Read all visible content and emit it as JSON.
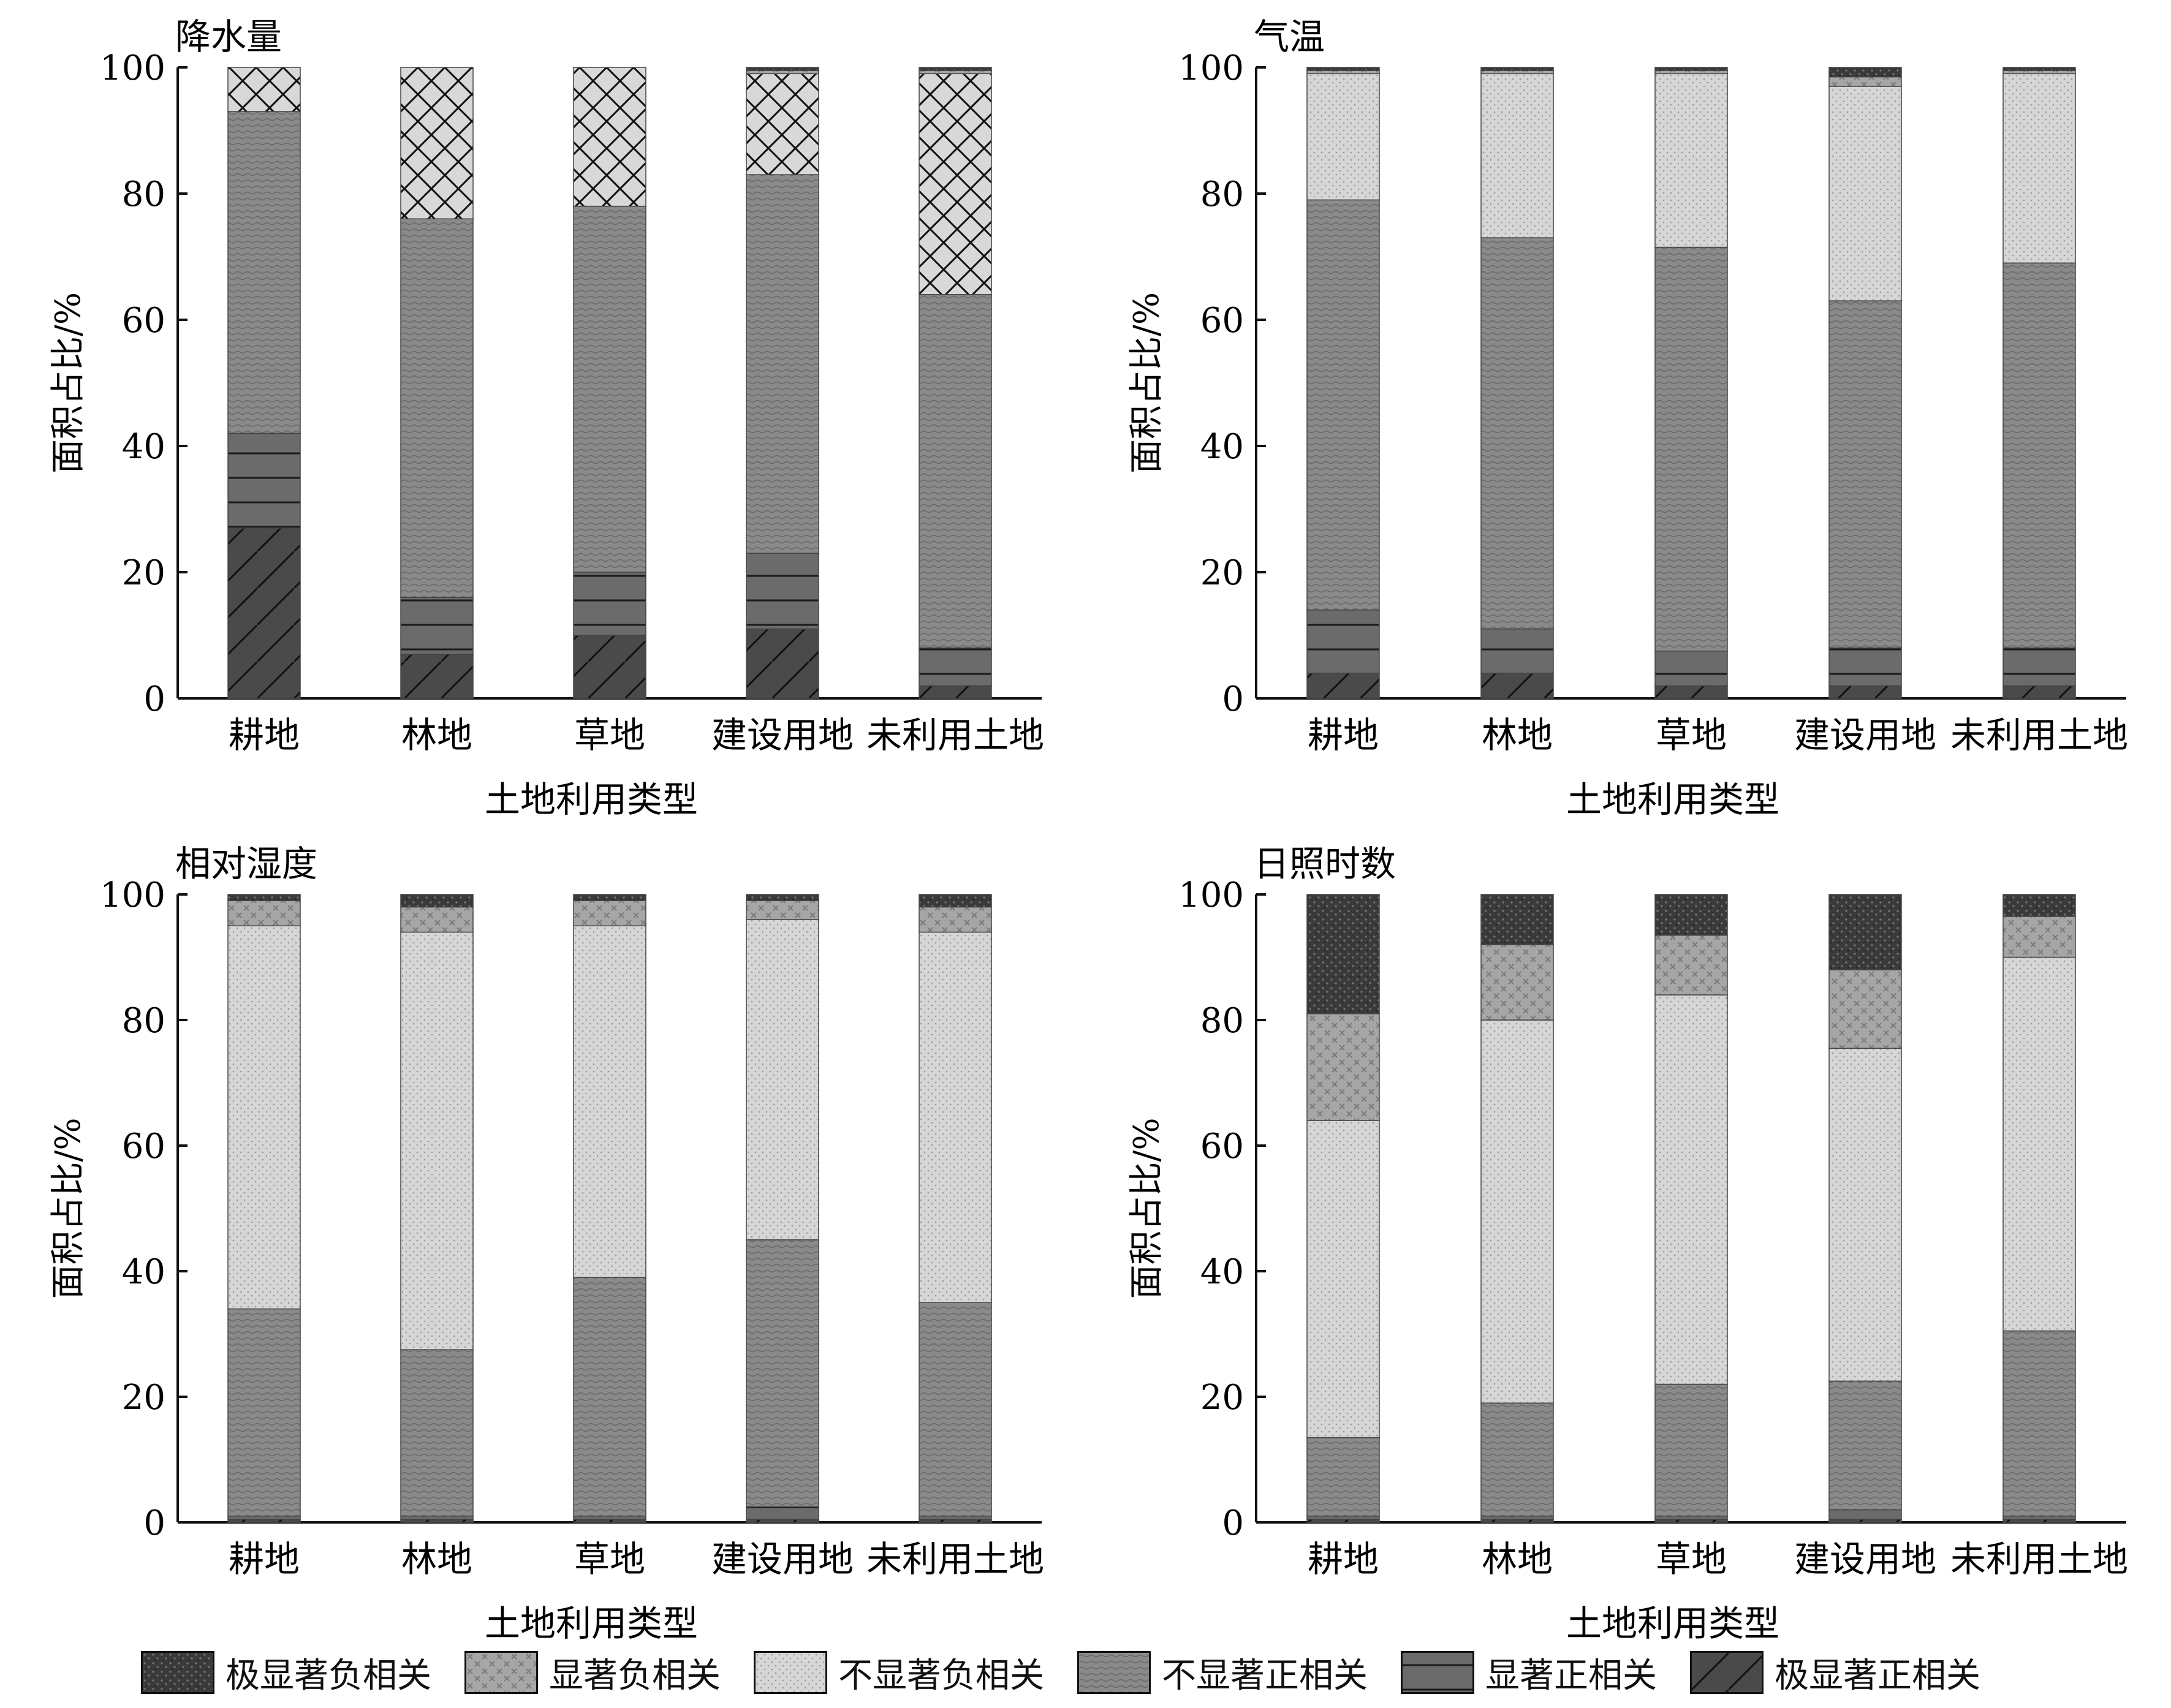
{
  "chart_data": [
    {
      "type": "bar",
      "stacked": true,
      "title": "降水量",
      "xlabel": "土地利用类型",
      "ylabel": "面积占比/%",
      "ylim": [
        0,
        100
      ],
      "yticks": [
        "0",
        "20",
        "40",
        "60",
        "80",
        "100"
      ],
      "categories": [
        "耕地",
        "林地",
        "草地",
        "建设用地",
        "未利用土地"
      ],
      "series": [
        {
          "name": "极显著正相关",
          "values": [
            27,
            7,
            10,
            11,
            2
          ]
        },
        {
          "name": "显著正相关",
          "values": [
            15,
            9,
            10,
            12,
            6
          ]
        },
        {
          "name": "不显著正相关",
          "values": [
            51,
            60,
            58,
            60,
            56
          ]
        },
        {
          "name": "不显著负相关",
          "values": [
            7,
            24,
            22,
            16,
            35
          ]
        },
        {
          "name": "显著负相关",
          "values": [
            0,
            0,
            0,
            0.5,
            0.5
          ]
        },
        {
          "name": "极显著负相关",
          "values": [
            0,
            0,
            0,
            0.5,
            0.5
          ]
        }
      ]
    },
    {
      "type": "bar",
      "stacked": true,
      "title": "气温",
      "xlabel": "土地利用类型",
      "ylabel": "面积占比/%",
      "ylim": [
        0,
        100
      ],
      "yticks": [
        "0",
        "20",
        "40",
        "60",
        "80",
        "100"
      ],
      "categories": [
        "耕地",
        "林地",
        "草地",
        "建设用地",
        "未利用土地"
      ],
      "series": [
        {
          "name": "极显著正相关",
          "values": [
            4,
            4,
            2,
            2,
            2
          ]
        },
        {
          "name": "显著正相关",
          "values": [
            10,
            7,
            5.5,
            6,
            6
          ]
        },
        {
          "name": "不显著正相关",
          "values": [
            65,
            62,
            64,
            55,
            61
          ]
        },
        {
          "name": "不显著负相关",
          "values": [
            20,
            26,
            27.5,
            34,
            30
          ]
        },
        {
          "name": "显著负相关",
          "values": [
            0.5,
            0.5,
            0.5,
            1.5,
            0.5
          ]
        },
        {
          "name": "极显著负相关",
          "values": [
            0.5,
            0.5,
            0.5,
            1.5,
            0.5
          ]
        }
      ]
    },
    {
      "type": "bar",
      "stacked": true,
      "title": "相对湿度",
      "xlabel": "土地利用类型",
      "ylabel": "面积占比/%",
      "ylim": [
        0,
        100
      ],
      "yticks": [
        "0",
        "20",
        "40",
        "60",
        "80",
        "100"
      ],
      "categories": [
        "耕地",
        "林地",
        "草地",
        "建设用地",
        "未利用土地"
      ],
      "series": [
        {
          "name": "极显著正相关",
          "values": [
            0.5,
            0.5,
            0.5,
            0.5,
            0.5
          ]
        },
        {
          "name": "显著正相关",
          "values": [
            0.5,
            0.5,
            0.5,
            2,
            0.5
          ]
        },
        {
          "name": "不显著正相关",
          "values": [
            33,
            26.5,
            38,
            42.5,
            34
          ]
        },
        {
          "name": "不显著负相关",
          "values": [
            61,
            66.5,
            56,
            51,
            59
          ]
        },
        {
          "name": "显著负相关",
          "values": [
            4,
            4,
            4,
            3,
            4
          ]
        },
        {
          "name": "极显著负相关",
          "values": [
            1,
            2,
            1,
            1,
            2
          ]
        }
      ]
    },
    {
      "type": "bar",
      "stacked": true,
      "title": "日照时数",
      "xlabel": "土地利用类型",
      "ylabel": "面积占比/%",
      "ylim": [
        0,
        100
      ],
      "yticks": [
        "0",
        "20",
        "40",
        "60",
        "80",
        "100"
      ],
      "categories": [
        "耕地",
        "林地",
        "草地",
        "建设用地",
        "未利用土地"
      ],
      "series": [
        {
          "name": "极显著正相关",
          "values": [
            0.5,
            0.5,
            0.5,
            0.5,
            0.5
          ]
        },
        {
          "name": "显著正相关",
          "values": [
            0.5,
            0.5,
            0.5,
            1.5,
            0.5
          ]
        },
        {
          "name": "不显著正相关",
          "values": [
            12.5,
            18,
            21,
            20.5,
            29.5
          ]
        },
        {
          "name": "不显著负相关",
          "values": [
            50.5,
            61,
            62,
            53,
            59.5
          ]
        },
        {
          "name": "显著负相关",
          "values": [
            17,
            12,
            9.5,
            12.5,
            6.5
          ]
        },
        {
          "name": "极显著负相关",
          "values": [
            19,
            8,
            6.5,
            12,
            3.5
          ]
        }
      ]
    }
  ],
  "legend": [
    {
      "name": "极显著负相关",
      "key": "p_vneg"
    },
    {
      "name": "显著负相关",
      "key": "p_neg"
    },
    {
      "name": "不显著负相关",
      "key": "p_nsneg"
    },
    {
      "name": "不显著正相关",
      "key": "p_nspos"
    },
    {
      "name": "显著正相关",
      "key": "p_pos"
    },
    {
      "name": "极显著正相关",
      "key": "p_vpos"
    }
  ],
  "pattern_colors": {
    "极显著正相关": "#4a4a4a",
    "显著正相关": "#6b6b6b",
    "不显著正相关": "#8a8a8a",
    "不显著负相关": "#d4d4d4",
    "显著负相关": "#a6a6a6",
    "极显著负相关": "#3a3a3a"
  }
}
